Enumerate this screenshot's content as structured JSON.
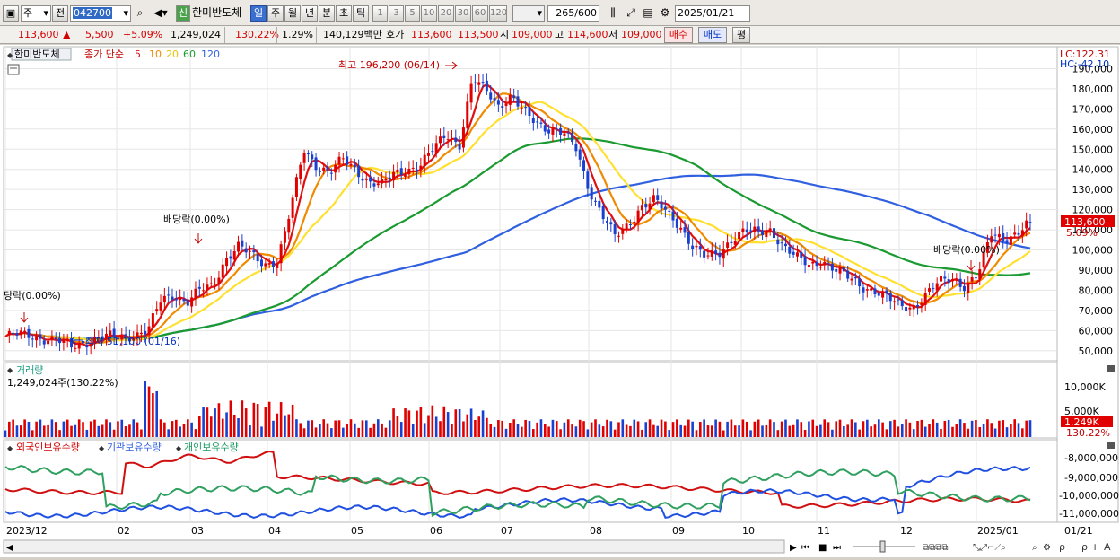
{
  "toolbar": {
    "type_select": "주",
    "market_btn": "전",
    "code": "042700",
    "badge": "신",
    "name": "한미반도체",
    "periods": [
      "일",
      "주",
      "월",
      "년",
      "분",
      "초",
      "틱"
    ],
    "selected_period": "일",
    "intervals": [
      "1",
      "3",
      "5",
      "10",
      "20",
      "30",
      "60",
      "120"
    ],
    "count": "265",
    "count_total": "/600",
    "date": "2025/01/21"
  },
  "quote": {
    "price": "113,600",
    "change_arrow": "▲",
    "change": "5,500",
    "change_pct": "+5.09%",
    "volume": "1,249,024",
    "volume_pct": "130.22%",
    "turnover_pct": "1.29%",
    "amount": "140,129백만",
    "ask_label": "호가",
    "ask1": "113,600",
    "ask2": "113,500",
    "open_label": "시",
    "open": "109,000",
    "high_label": "고",
    "high": "114,600",
    "low_label": "저",
    "low": "109,000",
    "buy": "매수",
    "sell": "매도",
    "eval": "평"
  },
  "colors": {
    "candle_up": "#e00000",
    "candle_down": "#1a40d0",
    "ma5": "#e01010",
    "ma10": "#f08a00",
    "ma20": "#ffe030",
    "ma60": "#1a9a30",
    "ma120": "#3060e0"
  },
  "price_panel": {
    "stock_label": "한미반도체",
    "ma_title": "종가 단순",
    "ma_periods": [
      "5",
      "10",
      "20",
      "60",
      "120"
    ],
    "lc": "LC:122.31",
    "hc": "HC:-42.10",
    "high_note": "최고 196,200 (06/14)",
    "low_note": "최저 51,100 (01/16)",
    "dividend_notes": [
      "당락(0.00%)",
      "배당락(0.00%)",
      "배당락(0.00%)"
    ],
    "price_tag": "113,600",
    "pct_tag": "5.09%",
    "y_labels": [
      "190,000",
      "180,000",
      "170,000",
      "160,000",
      "150,000",
      "140,000",
      "130,000",
      "120,000",
      "110,000",
      "100,000",
      "90,000",
      "80,000",
      "70,000",
      "60,000",
      "50,000"
    ]
  },
  "volume_panel": {
    "title": "거래량",
    "value": "1,249,024주(130.22%)",
    "y_labels": [
      "10,000K",
      "5,000K"
    ],
    "tag": "1,249K",
    "tag_pct": "130.22%"
  },
  "holdings_panel": {
    "legend": [
      "외국인보유수량",
      "기관보유수량",
      "개인보유수량"
    ],
    "y_labels": [
      "-8,000,000",
      "-9,000,000",
      "-10,000,000",
      "-11,000,000"
    ]
  },
  "x_axis": {
    "labels": [
      "2023/12",
      "02",
      "03",
      "04",
      "05",
      "06",
      "07",
      "08",
      "09",
      "10",
      "11",
      "12",
      "2025/01"
    ],
    "right_label": "01/21"
  },
  "chart_data": {
    "type": "candlestick",
    "ylim": [
      45000,
      200000
    ],
    "months": [
      "2023/12",
      "2024/01",
      "2024/02",
      "2024/03",
      "2024/04",
      "2024/05",
      "2024/06",
      "2024/07",
      "2024/08",
      "2024/09",
      "2024/10",
      "2024/11",
      "2024/12",
      "2025/01"
    ],
    "close_path": [
      57000,
      58000,
      57500,
      56000,
      55000,
      52000,
      54000,
      56000,
      57000,
      56500,
      58000,
      60000,
      75000,
      78000,
      74000,
      80000,
      82000,
      96000,
      102000,
      97000,
      93000,
      95000,
      120000,
      150000,
      142000,
      138000,
      145000,
      140000,
      134000,
      132000,
      138000,
      140000,
      142000,
      150000,
      158000,
      152000,
      184000,
      180000,
      172000,
      176000,
      168000,
      163000,
      160000,
      158000,
      150000,
      130000,
      118000,
      106000,
      112000,
      122000,
      125000,
      118000,
      112000,
      102000,
      96000,
      98000,
      106000,
      110000,
      108000,
      110000,
      102000,
      96000,
      92000,
      95000,
      90000,
      86000,
      82000,
      80000,
      76000,
      72000,
      72000,
      78000,
      84000,
      86000,
      82000,
      88000,
      108000,
      106000,
      108000,
      113600
    ],
    "high": 196200,
    "low": 51100,
    "last_close": 113600
  }
}
